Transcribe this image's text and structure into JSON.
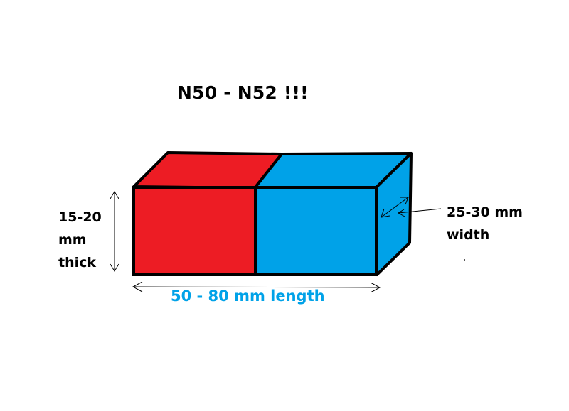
{
  "title": "N50 - N52 !!!",
  "labels": {
    "thickness_line1": "15-20",
    "thickness_line2": "mm",
    "thickness_line3": "thick",
    "width_line1": "25-30 mm",
    "width_line2": "width",
    "length": "50 - 80 mm length"
  },
  "colors": {
    "north_pole": "#ED1C24",
    "south_pole": "#00A2E8",
    "outline": "#000000",
    "length_text": "#00A2E8"
  }
}
